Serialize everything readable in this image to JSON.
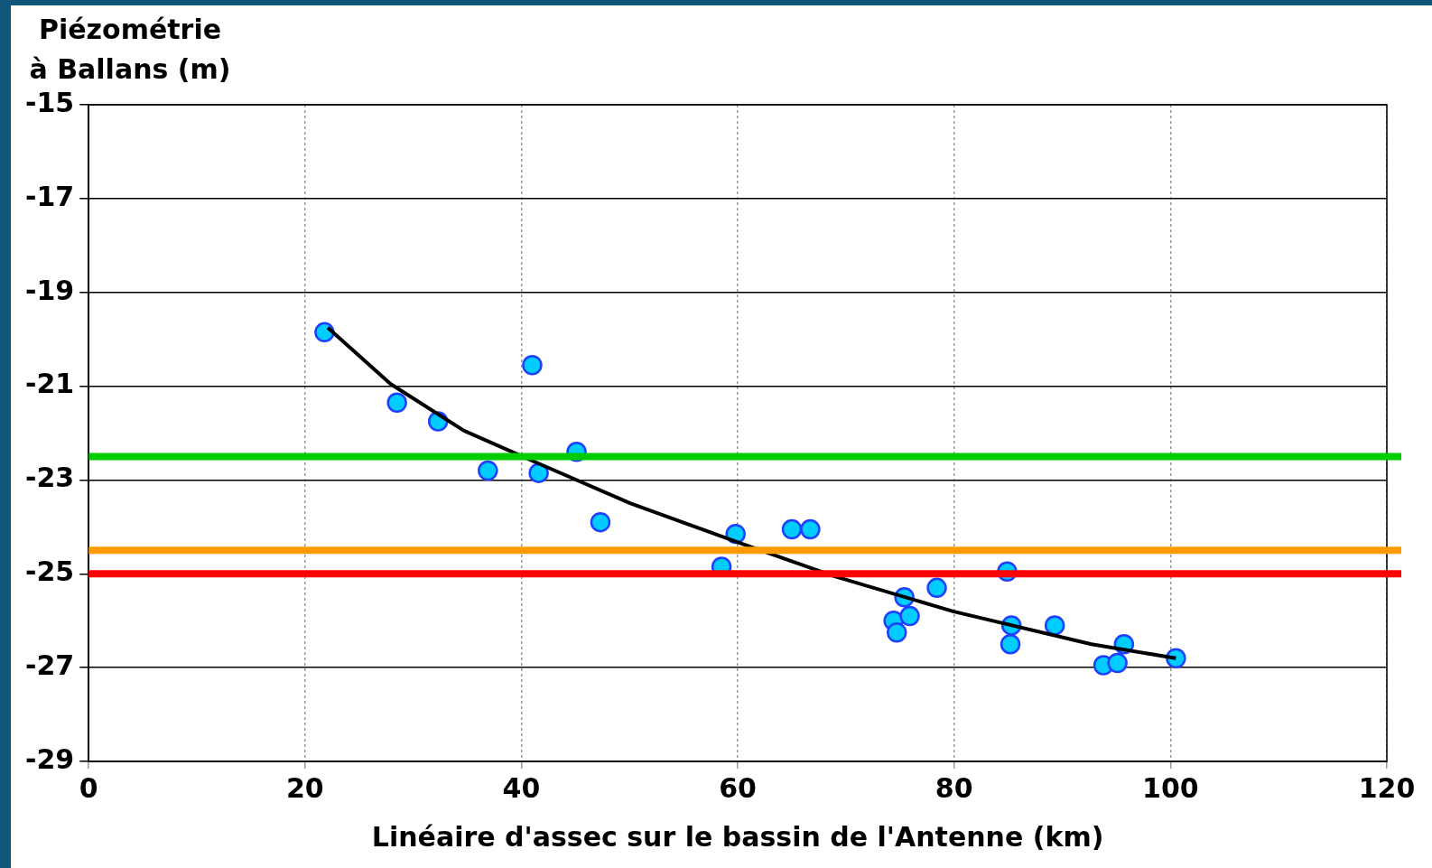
{
  "chart_data": {
    "type": "scatter",
    "xlabel": "Linéaire d'assec sur le bassin de l'Antenne (km)",
    "ylabel": "Piézométrie\nà Ballans (m)",
    "xlim": [
      0,
      120
    ],
    "xticks": [
      0,
      20,
      40,
      60,
      80,
      100,
      120
    ],
    "ylim": [
      -29,
      -15
    ],
    "yticks": [
      -29,
      -27,
      -25,
      -23,
      -21,
      -19,
      -17,
      -15
    ],
    "grid": true,
    "legend": false,
    "marker": "circle",
    "series": [
      {
        "color": "#00ccff",
        "x": [
          21.8,
          28.5,
          32.3,
          41.0,
          36.9,
          41.6,
          45.1,
          47.3,
          58.5,
          59.8,
          65.0,
          66.7,
          74.4,
          74.7,
          75.4,
          75.9,
          78.4,
          84.9,
          85.3,
          85.2,
          89.3,
          93.8,
          95.1,
          95.7,
          100.5
        ],
        "values": [
          -19.85,
          -21.35,
          -21.75,
          -20.55,
          -22.8,
          -22.85,
          -22.4,
          -23.9,
          -24.85,
          -24.15,
          -24.05,
          -24.05,
          -26.0,
          -26.25,
          -25.5,
          -25.9,
          -25.3,
          -24.95,
          -26.1,
          -26.5,
          -26.1,
          -26.95,
          -26.9,
          -26.5,
          -26.8
        ]
      },
      {
        "type": "line",
        "color": "#000000",
        "marker": "none",
        "x": [
          22.1,
          27.9,
          34.7,
          41.6,
          50.1,
          60.3,
          68.9,
          79.9,
          92.7,
          100.5
        ],
        "values": [
          -19.75,
          -20.95,
          -21.95,
          -22.65,
          -23.5,
          -24.35,
          -25.05,
          -25.8,
          -26.5,
          -26.8
        ]
      }
    ],
    "ref_lines": [
      {
        "axis": "y",
        "value": -22.5,
        "color": "#00cc00"
      },
      {
        "axis": "y",
        "value": -24.5,
        "color": "#ff9900"
      },
      {
        "axis": "y",
        "value": -25,
        "color": "#ff0000"
      }
    ]
  }
}
